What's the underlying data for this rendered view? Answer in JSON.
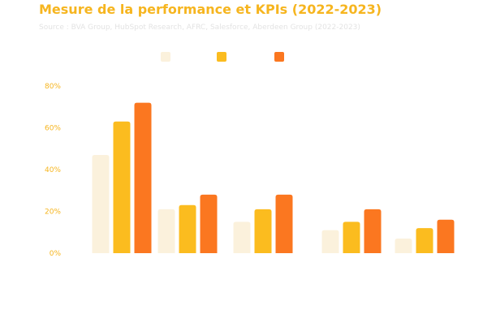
{
  "title": "Mesure de la performance et KPIs (2022-2023)",
  "subtitle": "Source : BVA Group, HubSpot Research, AFRC, Salesforce, Aberdeen Group (2022-2023)",
  "colors": {
    "title": "#f6b51f",
    "subtitle": "#e3e3e3",
    "axis_text": "#f6b51f",
    "series": [
      "#fbf1dc",
      "#fbbc1f",
      "#fb7720"
    ]
  },
  "chart_data": {
    "type": "bar",
    "categories": [
      "",
      "",
      "",
      "",
      ""
    ],
    "series": [
      {
        "values": [
          47,
          21,
          15,
          11,
          7
        ]
      },
      {
        "values": [
          63,
          23,
          21,
          15,
          12
        ]
      },
      {
        "values": [
          72,
          28,
          28,
          21,
          16
        ]
      }
    ],
    "yticks": [
      "0%",
      "20%",
      "40%",
      "60%",
      "80%"
    ],
    "ylim": [
      0,
      80
    ],
    "grid": false,
    "legend_position": "top-center"
  }
}
